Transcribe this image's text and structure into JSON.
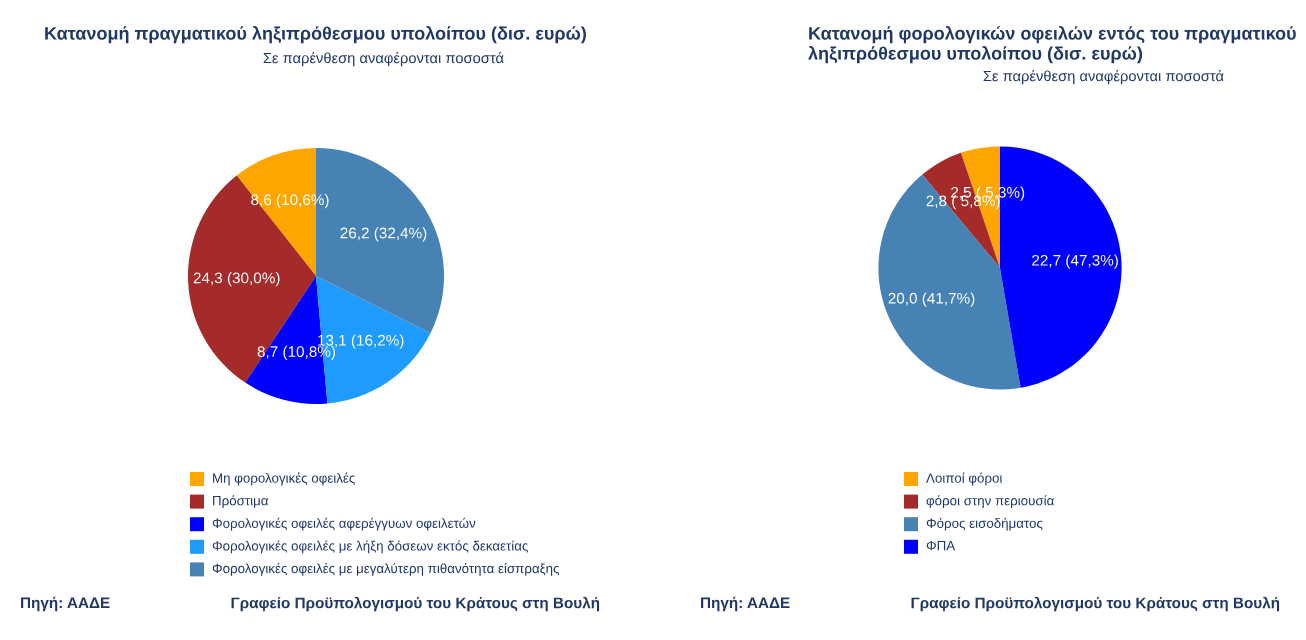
{
  "chart_data": [
    {
      "type": "pie",
      "title": "Κατανομή πραγματικού ληξιπρόθεσμου υπολοίπου (δισ. ευρώ)",
      "subtitle": "Σε παρένθεση αναφέρονται ποσοστά",
      "categories": [
        "Μη φορολογικές οφειλές",
        "Πρόστιμα",
        "Φορολογικές οφειλές αφερέγγυων οφειλετών",
        "Φορολογικές οφειλές με λήξη δόσεων εκτός δεκαετίας",
        "Φορολογικές οφειλές με μεγαλύτερη πιθανότητα είσπραξης"
      ],
      "values": [
        8.6,
        24.3,
        8.7,
        13.1,
        26.2
      ],
      "value_labels": [
        "8,6 (10,6%)",
        "24,3 (30,0%)",
        "8,7 (10,8%)",
        "13,1 (16,2%)",
        "26,2 (32,4%)"
      ],
      "colors": [
        "#ffa500",
        "#a52a2a",
        "#0000ff",
        "#1e9bff",
        "#4682b4"
      ],
      "legend": "bottom",
      "annotations": [
        "Πηγή: ΑΑΔΕ",
        "Γραφείο Προϋπολογισμού του Κράτους στη Βουλή"
      ]
    },
    {
      "type": "pie",
      "title": "Κατανομή φορολογικών οφειλών εντός του πραγματικού ληξιπρόθεσμου υπολοίπου (δισ. ευρώ)",
      "subtitle": "Σε παρένθεση αναφέρονται ποσοστά",
      "categories": [
        "Λοιποί φόροι",
        "φόροι στην περιουσία",
        "Φόρος εισοδήματος",
        "ΦΠΑ"
      ],
      "values": [
        2.5,
        2.8,
        20.0,
        22.7
      ],
      "value_labels": [
        "2,5 ( 5,3%)",
        "2,8 ( 5,8%)",
        "20,0 (41,7%)",
        "22,7 (47,3%)"
      ],
      "colors": [
        "#ffa500",
        "#a52a2a",
        "#4682b4",
        "#0000ff"
      ],
      "legend": "bottom",
      "annotations": [
        "Πηγή: ΑΑΔΕ",
        "Γραφείο Προϋπολογισμού του Κράτους στη Βουλή"
      ]
    }
  ]
}
